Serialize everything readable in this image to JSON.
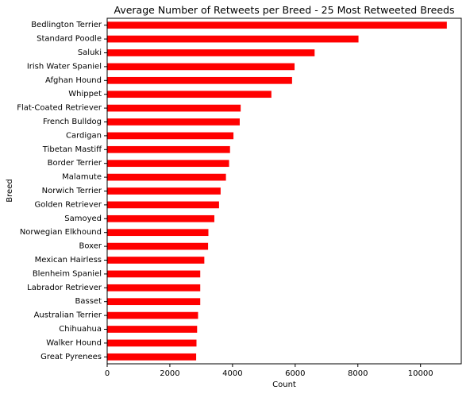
{
  "chart_data": {
    "type": "bar",
    "orientation": "horizontal",
    "title": "Average Number of Retweets per Breed - 25 Most Retweeted Breeds",
    "xlabel": "Count",
    "ylabel": "Breed",
    "xlim": [
      0,
      11300
    ],
    "xticks": [
      0,
      2000,
      4000,
      6000,
      8000,
      10000
    ],
    "grid": false,
    "bar_color": "#ff0000",
    "categories": [
      "Bedlington Terrier",
      "Standard Poodle",
      "Saluki",
      "Irish Water Spaniel",
      "Afghan Hound",
      "Whippet",
      "Flat-Coated Retriever",
      "French Bulldog",
      "Cardigan",
      "Tibetan Mastiff",
      "Border Terrier",
      "Malamute",
      "Norwich Terrier",
      "Golden Retriever",
      "Samoyed",
      "Norwegian Elkhound",
      "Boxer",
      "Mexican Hairless",
      "Blenheim Spaniel",
      "Labrador Retriever",
      "Basset",
      "Australian Terrier",
      "Chihuahua",
      "Walker Hound",
      "Great Pyrenees"
    ],
    "values": [
      10840,
      8020,
      6620,
      5980,
      5900,
      5240,
      4260,
      4230,
      4030,
      3920,
      3890,
      3790,
      3620,
      3570,
      3420,
      3230,
      3220,
      3100,
      2970,
      2970,
      2970,
      2900,
      2870,
      2850,
      2840
    ]
  }
}
